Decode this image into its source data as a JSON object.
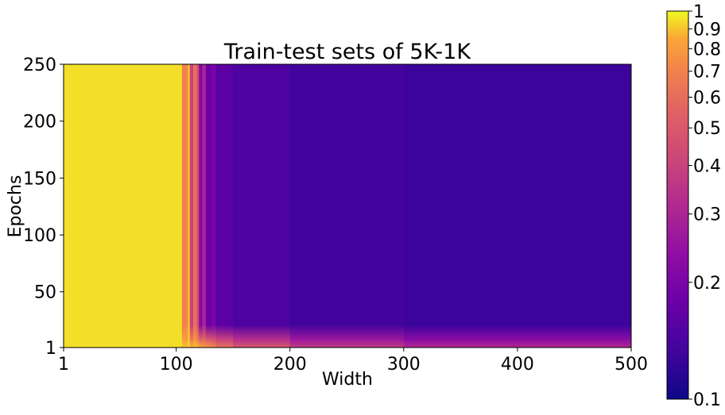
{
  "chart_data": {
    "type": "heatmap",
    "title": "Train-test sets of 5K-1K",
    "xlabel": "Width",
    "ylabel": "Epochs",
    "xlim": [
      1,
      500
    ],
    "ylim": [
      1,
      250
    ],
    "xticks": [
      1,
      100,
      200,
      300,
      400,
      500
    ],
    "yticks": [
      1,
      50,
      100,
      150,
      200,
      250
    ],
    "colorbar": {
      "scale": "log",
      "colormap": "plasma",
      "range": [
        0.1,
        1
      ],
      "ticks": [
        0.1,
        0.2,
        0.3,
        0.4,
        0.5,
        0.6,
        0.7,
        0.8,
        0.9,
        1
      ],
      "tick_labels": [
        "0.1",
        "0.2",
        "0.3",
        "0.4",
        "0.5",
        "0.6",
        "0.7",
        "0.8",
        "0.9",
        "1"
      ]
    },
    "columns": [
      {
        "x": [
          1,
          105
        ],
        "final": 0.95,
        "initial": 0.95
      },
      {
        "x": [
          105,
          110
        ],
        "final": 0.7,
        "initial": 0.9
      },
      {
        "x": [
          110,
          112
        ],
        "final": 0.88,
        "initial": 0.92
      },
      {
        "x": [
          112,
          115
        ],
        "final": 0.4,
        "initial": 0.88
      },
      {
        "x": [
          115,
          118
        ],
        "final": 0.62,
        "initial": 0.9
      },
      {
        "x": [
          118,
          120
        ],
        "final": 0.45,
        "initial": 0.88
      },
      {
        "x": [
          120,
          123
        ],
        "final": 0.22,
        "initial": 0.85
      },
      {
        "x": [
          123,
          126
        ],
        "final": 0.3,
        "initial": 0.82
      },
      {
        "x": [
          126,
          131
        ],
        "final": 0.18,
        "initial": 0.78
      },
      {
        "x": [
          131,
          135
        ],
        "final": 0.2,
        "initial": 0.72
      },
      {
        "x": [
          135,
          150
        ],
        "final": 0.16,
        "initial": 0.62
      },
      {
        "x": [
          150,
          200
        ],
        "final": 0.145,
        "initial": 0.5
      },
      {
        "x": [
          200,
          300
        ],
        "final": 0.135,
        "initial": 0.38
      },
      {
        "x": [
          300,
          500
        ],
        "final": 0.13,
        "initial": 0.32
      }
    ]
  }
}
